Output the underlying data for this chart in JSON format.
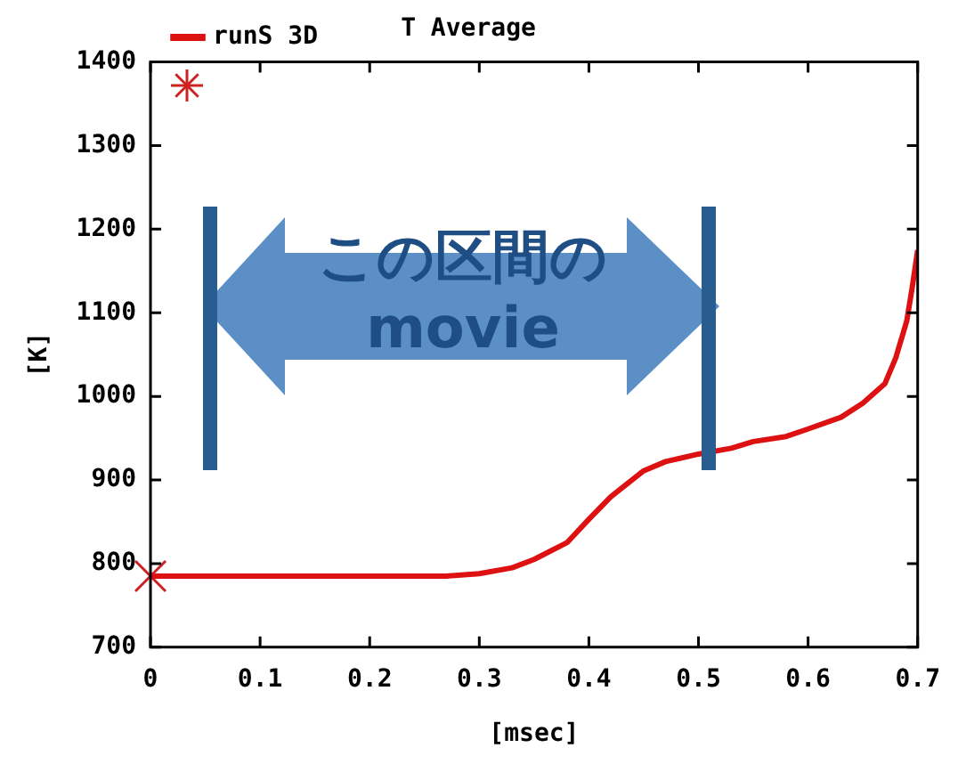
{
  "chart_data": {
    "type": "line",
    "title": "T Average",
    "xlabel": "[msec]",
    "ylabel": "[K]",
    "xlim": [
      0,
      0.7
    ],
    "ylim": [
      700,
      1400
    ],
    "xticks": [
      0,
      0.1,
      0.2,
      0.3,
      0.4,
      0.5,
      0.6,
      0.7
    ],
    "yticks": [
      700,
      800,
      900,
      1000,
      1100,
      1200,
      1300,
      1400
    ],
    "grid": false,
    "legend": "top left",
    "line_style": "solid",
    "annotations": [
      "この区間のmovie"
    ],
    "series": [
      {
        "name": "runS 3D",
        "color": "#dd1111",
        "marker": "none",
        "x": [
          0,
          0.1,
          0.2,
          0.27,
          0.3,
          0.33,
          0.35,
          0.38,
          0.4,
          0.42,
          0.45,
          0.47,
          0.5,
          0.53,
          0.55,
          0.58,
          0.6,
          0.63,
          0.65,
          0.67,
          0.68,
          0.69,
          0.695,
          0.7
        ],
        "values": [
          785,
          785,
          785,
          785,
          788,
          795,
          805,
          825,
          853,
          880,
          911,
          922,
          931,
          938,
          946,
          952,
          961,
          975,
          992,
          1015,
          1046,
          1090,
          1130,
          1175
        ]
      },
      {
        "type": "scatter",
        "color": "#cc2222",
        "marker": "cross",
        "x": [
          0
        ],
        "values": [
          785
        ]
      }
    ]
  }
}
